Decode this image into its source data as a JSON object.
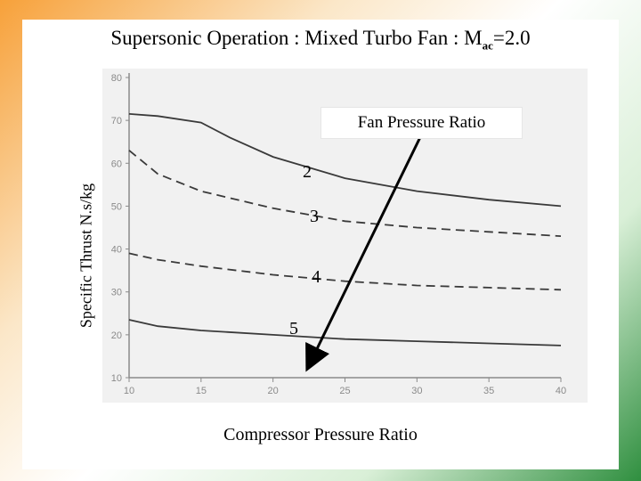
{
  "title": {
    "main": "Supersonic Operation : Mixed Turbo Fan : M",
    "subscript": "ac",
    "suffix": "=2.0"
  },
  "chart_data": {
    "type": "line",
    "ylabel": "Specific Thrust N.s/kg",
    "xlabel": "Compressor Pressure Ratio",
    "xlim": [
      10,
      40
    ],
    "ylim": [
      10,
      80
    ],
    "x_ticks": [
      10,
      15,
      20,
      25,
      30,
      35,
      40
    ],
    "y_ticks": [
      10,
      20,
      30,
      40,
      50,
      60,
      70,
      80
    ],
    "legend_title": "Fan Pressure Ratio",
    "series": [
      {
        "name": "2",
        "style": "solid",
        "x": [
          10,
          12,
          15,
          17,
          20,
          25,
          30,
          35,
          40
        ],
        "y": [
          71.5,
          71,
          69.5,
          66,
          61.5,
          56.5,
          53.5,
          51.5,
          50
        ]
      },
      {
        "name": "3",
        "style": "dashed",
        "x": [
          10,
          12,
          15,
          20,
          25,
          30,
          35,
          40
        ],
        "y": [
          63,
          57.5,
          53.5,
          49.5,
          46.5,
          45,
          44,
          43
        ]
      },
      {
        "name": "4",
        "style": "dashed",
        "x": [
          10,
          12,
          15,
          20,
          25,
          30,
          35,
          40
        ],
        "y": [
          39,
          37.5,
          36,
          34,
          32.5,
          31.5,
          31,
          30.5
        ]
      },
      {
        "name": "5",
        "style": "solid",
        "x": [
          10,
          12,
          15,
          20,
          25,
          30,
          35,
          40
        ],
        "y": [
          23.5,
          22,
          21,
          20,
          19,
          18.5,
          18,
          17.5
        ]
      }
    ],
    "annotation": "arrow pointing in direction of increasing fan pressure ratio"
  },
  "colors": {
    "curve": "#3a3a3a",
    "arrow": "#000000",
    "axis": "#8a8a8a"
  }
}
